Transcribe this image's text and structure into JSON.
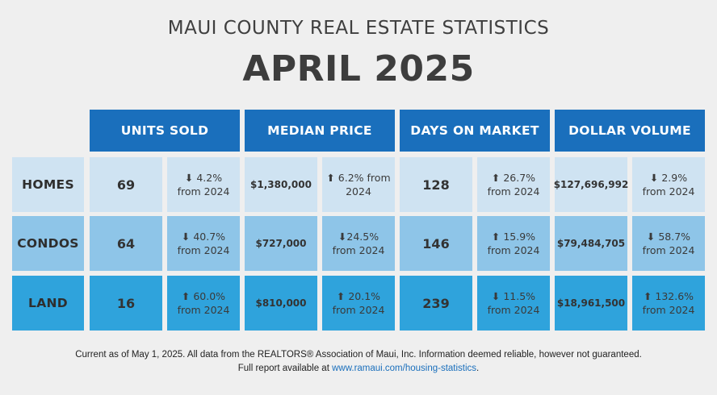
{
  "subtitle": "MAUI COUNTY REAL ESTATE STATISTICS",
  "title": "APRIL 2025",
  "headers": [
    "UNITS SOLD",
    "MEDIAN PRICE",
    "DAYS ON MARKET",
    "DOLLAR VOLUME"
  ],
  "rows": [
    {
      "label": "HOMES",
      "units": "69",
      "units_change": "⬇ 4.2%",
      "units_from": "from 2024",
      "price": "$1,380,000",
      "price_change": "⬆ 6.2% from",
      "price_from": "2024",
      "days": "128",
      "days_change": "⬆ 26.7%",
      "days_from": "from 2024",
      "volume": "$127,696,992",
      "volume_change": "⬇ 2.9%",
      "volume_from": "from 2024"
    },
    {
      "label": "CONDOS",
      "units": "64",
      "units_change": "⬇ 40.7%",
      "units_from": "from 2024",
      "price": "$727,000",
      "price_change": "⬇24.5%",
      "price_from": "from 2024",
      "days": "146",
      "days_change": "⬆ 15.9%",
      "days_from": "from 2024",
      "volume": "$79,484,705",
      "volume_change": "⬇ 58.7%",
      "volume_from": "from 2024"
    },
    {
      "label": "LAND",
      "units": "16",
      "units_change": "⬆ 60.0%",
      "units_from": "from 2024",
      "price": "$810,000",
      "price_change": "⬆ 20.1%",
      "price_from": "from 2024",
      "days": "239",
      "days_change": "⬇ 11.5%",
      "days_from": "from 2024",
      "volume": "$18,961,500",
      "volume_change": "⬆ 132.6%",
      "volume_from": "from 2024"
    }
  ],
  "footer": {
    "line1": "Current as of May 1, 2025. All data from the REALTORS® Association of Maui, Inc. Information deemed reliable, however not guaranteed.",
    "line2_prefix": "Full report available at ",
    "link": "www.ramaui.com/housing-statistics",
    "line2_suffix": "."
  },
  "colors": {
    "header": "#1a6fbc",
    "row_homes": "#cfe3f2",
    "row_condos": "#8ec5e8",
    "row_land": "#2fa3dc",
    "background": "#efefef"
  }
}
